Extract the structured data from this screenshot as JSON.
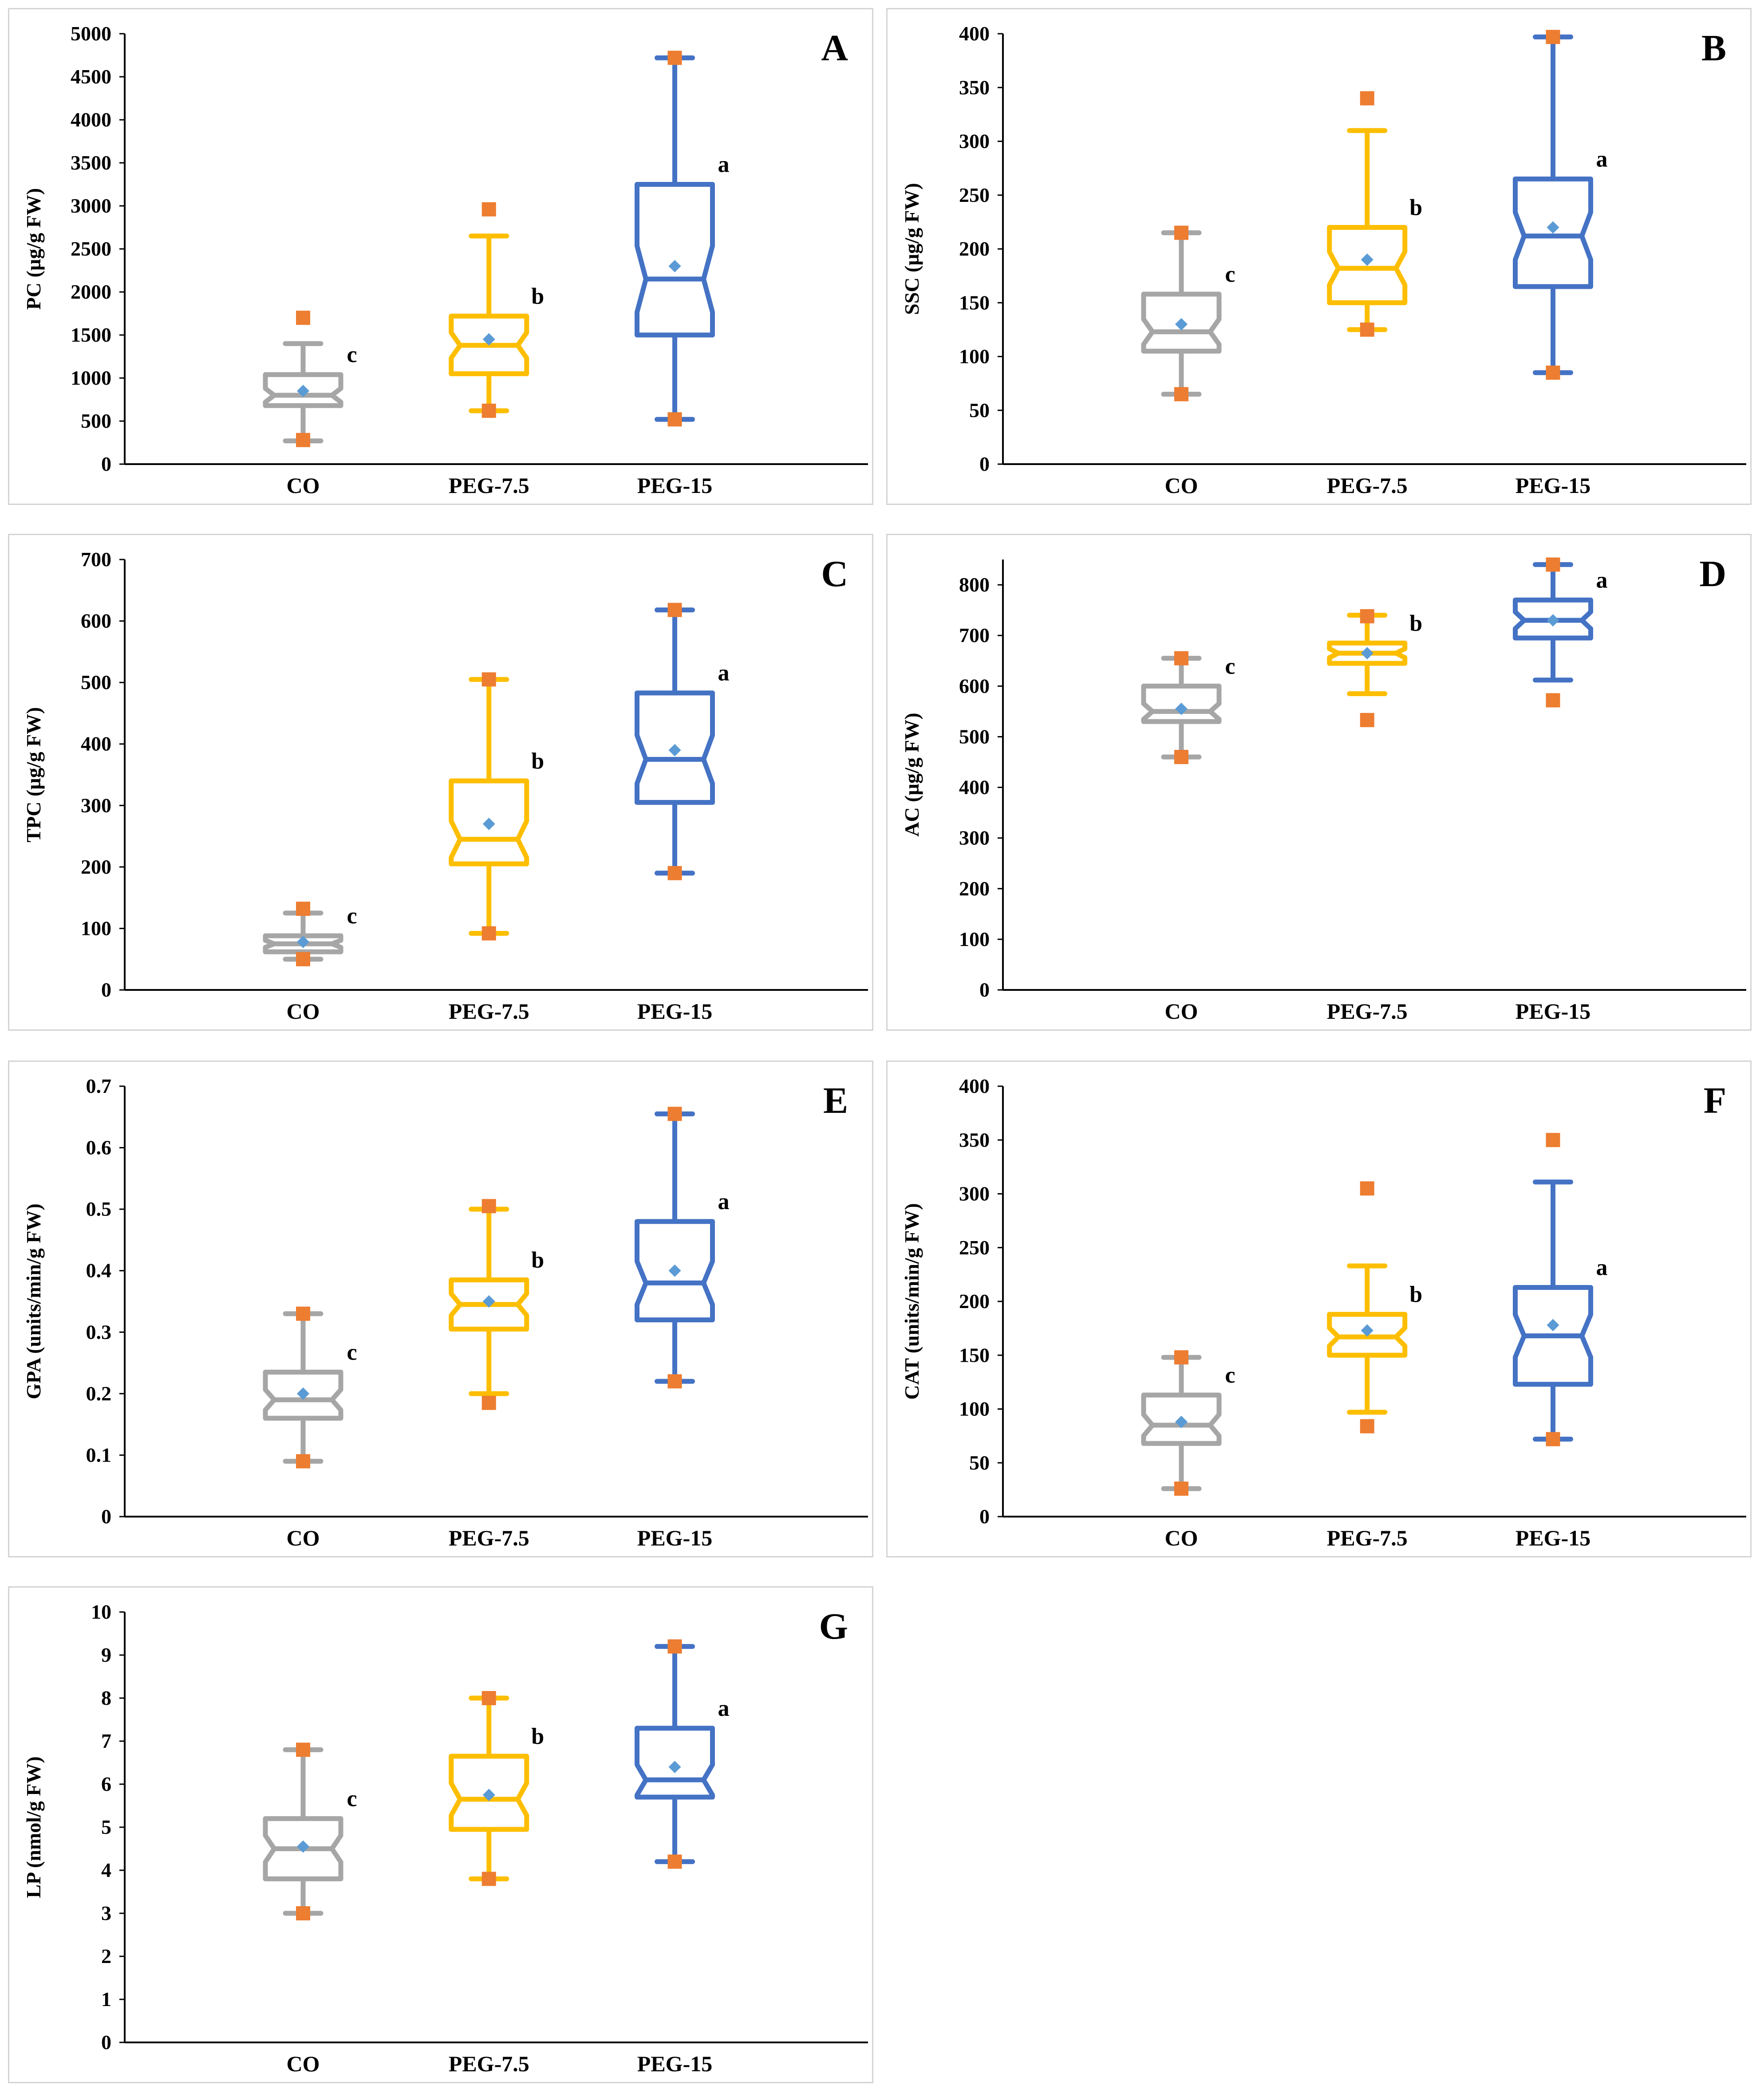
{
  "figure": {
    "series_colors": {
      "CO": "#a6a6a6",
      "PEG-7.5": "#fdbe00",
      "PEG-15": "#4472c4"
    },
    "outlier_color": "#ed7d31",
    "mean_color": "#5b9bd5"
  },
  "chart_data": [
    {
      "type": "box",
      "panel": "A",
      "ylabel": "PC (µg/g FW)",
      "ylim": [
        0,
        5000
      ],
      "yticks": [
        0,
        500,
        1000,
        1500,
        2000,
        2500,
        3000,
        3500,
        4000,
        4500,
        5000
      ],
      "categories": [
        "CO",
        "PEG-7.5",
        "PEG-15"
      ],
      "boxes": [
        {
          "name": "CO",
          "whisker_low": 270,
          "q1": 680,
          "median": 800,
          "q3": 1040,
          "whisker_high": 1400,
          "mean": 850,
          "outliers": [
            1700,
            280
          ],
          "letter": "c"
        },
        {
          "name": "PEG-7.5",
          "whisker_low": 620,
          "q1": 1050,
          "median": 1380,
          "q3": 1720,
          "whisker_high": 2650,
          "mean": 1450,
          "outliers": [
            2960,
            620
          ],
          "letter": "b"
        },
        {
          "name": "PEG-15",
          "whisker_low": 520,
          "q1": 1500,
          "median": 2150,
          "q3": 3250,
          "whisker_high": 4720,
          "mean": 2300,
          "outliers": [
            4720,
            520
          ],
          "letter": "a"
        }
      ]
    },
    {
      "type": "box",
      "panel": "B",
      "ylabel": "SSC (µg/g FW)",
      "ylim": [
        0,
        400
      ],
      "yticks": [
        0,
        50,
        100,
        150,
        200,
        250,
        300,
        350,
        400
      ],
      "categories": [
        "CO",
        "PEG-7.5",
        "PEG-15"
      ],
      "boxes": [
        {
          "name": "CO",
          "whisker_low": 65,
          "q1": 105,
          "median": 123,
          "q3": 158,
          "whisker_high": 215,
          "mean": 130,
          "outliers": [
            215,
            65
          ],
          "letter": "c"
        },
        {
          "name": "PEG-7.5",
          "whisker_low": 125,
          "q1": 150,
          "median": 182,
          "q3": 220,
          "whisker_high": 310,
          "mean": 190,
          "outliers": [
            340,
            125
          ],
          "letter": "b"
        },
        {
          "name": "PEG-15",
          "whisker_low": 85,
          "q1": 165,
          "median": 212,
          "q3": 265,
          "whisker_high": 397,
          "mean": 220,
          "outliers": [
            397,
            85
          ],
          "letter": "a"
        }
      ]
    },
    {
      "type": "box",
      "panel": "C",
      "ylabel": "TPC (µg/g FW)",
      "ylim": [
        0,
        700
      ],
      "yticks": [
        0,
        100,
        200,
        300,
        400,
        500,
        600,
        700
      ],
      "categories": [
        "CO",
        "PEG-7.5",
        "PEG-15"
      ],
      "boxes": [
        {
          "name": "CO",
          "whisker_low": 50,
          "q1": 62,
          "median": 75,
          "q3": 88,
          "whisker_high": 125,
          "mean": 78,
          "outliers": [
            132,
            50
          ],
          "letter": "c"
        },
        {
          "name": "PEG-7.5",
          "whisker_low": 92,
          "q1": 205,
          "median": 245,
          "q3": 340,
          "whisker_high": 505,
          "mean": 270,
          "outliers": [
            505,
            92
          ],
          "letter": "b"
        },
        {
          "name": "PEG-15",
          "whisker_low": 190,
          "q1": 305,
          "median": 375,
          "q3": 483,
          "whisker_high": 618,
          "mean": 390,
          "outliers": [
            618,
            190
          ],
          "letter": "a"
        }
      ]
    },
    {
      "type": "box",
      "panel": "D",
      "ylabel": "AC (µg/g FW)",
      "ylim": [
        0,
        850
      ],
      "yticks": [
        0,
        100,
        200,
        300,
        400,
        500,
        600,
        700,
        800
      ],
      "categories": [
        "CO",
        "PEG-7.5",
        "PEG-15"
      ],
      "boxes": [
        {
          "name": "CO",
          "whisker_low": 460,
          "q1": 530,
          "median": 550,
          "q3": 600,
          "whisker_high": 655,
          "mean": 555,
          "outliers": [
            655,
            460
          ],
          "letter": "c"
        },
        {
          "name": "PEG-7.5",
          "whisker_low": 585,
          "q1": 645,
          "median": 665,
          "q3": 685,
          "whisker_high": 740,
          "mean": 665,
          "outliers": [
            738,
            533
          ],
          "letter": "b"
        },
        {
          "name": "PEG-15",
          "whisker_low": 612,
          "q1": 695,
          "median": 730,
          "q3": 770,
          "whisker_high": 840,
          "mean": 730,
          "outliers": [
            840,
            572
          ],
          "letter": "a"
        }
      ]
    },
    {
      "type": "box",
      "panel": "E",
      "ylabel": "GPA (units/min/g FW)",
      "ylim": [
        0,
        0.7
      ],
      "yticks": [
        0,
        0.1,
        0.2,
        0.3,
        0.4,
        0.5,
        0.6,
        0.7
      ],
      "categories": [
        "CO",
        "PEG-7.5",
        "PEG-15"
      ],
      "boxes": [
        {
          "name": "CO",
          "whisker_low": 0.09,
          "q1": 0.16,
          "median": 0.19,
          "q3": 0.235,
          "whisker_high": 0.33,
          "mean": 0.2,
          "outliers": [
            0.33,
            0.09
          ],
          "letter": "c"
        },
        {
          "name": "PEG-7.5",
          "whisker_low": 0.2,
          "q1": 0.305,
          "median": 0.345,
          "q3": 0.385,
          "whisker_high": 0.5,
          "mean": 0.35,
          "outliers": [
            0.505,
            0.185
          ],
          "letter": "b"
        },
        {
          "name": "PEG-15",
          "whisker_low": 0.22,
          "q1": 0.32,
          "median": 0.38,
          "q3": 0.48,
          "whisker_high": 0.655,
          "mean": 0.4,
          "outliers": [
            0.655,
            0.22
          ],
          "letter": "a"
        }
      ]
    },
    {
      "type": "box",
      "panel": "F",
      "ylabel": "CAT (units/min/g FW)",
      "ylim": [
        0,
        400
      ],
      "yticks": [
        0,
        50,
        100,
        150,
        200,
        250,
        300,
        350,
        400
      ],
      "categories": [
        "CO",
        "PEG-7.5",
        "PEG-15"
      ],
      "boxes": [
        {
          "name": "CO",
          "whisker_low": 26,
          "q1": 68,
          "median": 85,
          "q3": 113,
          "whisker_high": 148,
          "mean": 88,
          "outliers": [
            148,
            26
          ],
          "letter": "c"
        },
        {
          "name": "PEG-7.5",
          "whisker_low": 97,
          "q1": 150,
          "median": 167,
          "q3": 188,
          "whisker_high": 233,
          "mean": 173,
          "outliers": [
            305,
            84
          ],
          "letter": "b"
        },
        {
          "name": "PEG-15",
          "whisker_low": 72,
          "q1": 123,
          "median": 168,
          "q3": 213,
          "whisker_high": 311,
          "mean": 178,
          "outliers": [
            350,
            72
          ],
          "letter": "a"
        }
      ]
    },
    {
      "type": "box",
      "panel": "G",
      "ylabel": "LP (nmol/g FW)",
      "ylim": [
        0,
        10
      ],
      "yticks": [
        0,
        1,
        2,
        3,
        4,
        5,
        6,
        7,
        8,
        9,
        10
      ],
      "categories": [
        "CO",
        "PEG-7.5",
        "PEG-15"
      ],
      "boxes": [
        {
          "name": "CO",
          "whisker_low": 3.0,
          "q1": 3.8,
          "median": 4.5,
          "q3": 5.2,
          "whisker_high": 6.8,
          "mean": 4.55,
          "outliers": [
            6.8,
            3.0
          ],
          "letter": "c"
        },
        {
          "name": "PEG-7.5",
          "whisker_low": 3.8,
          "q1": 4.95,
          "median": 5.65,
          "q3": 6.65,
          "whisker_high": 8.0,
          "mean": 5.75,
          "outliers": [
            8.0,
            3.8
          ],
          "letter": "b"
        },
        {
          "name": "PEG-15",
          "whisker_low": 4.2,
          "q1": 5.7,
          "median": 6.1,
          "q3": 7.3,
          "whisker_high": 9.2,
          "mean": 6.4,
          "outliers": [
            9.2,
            4.2
          ],
          "letter": "a"
        }
      ]
    }
  ]
}
